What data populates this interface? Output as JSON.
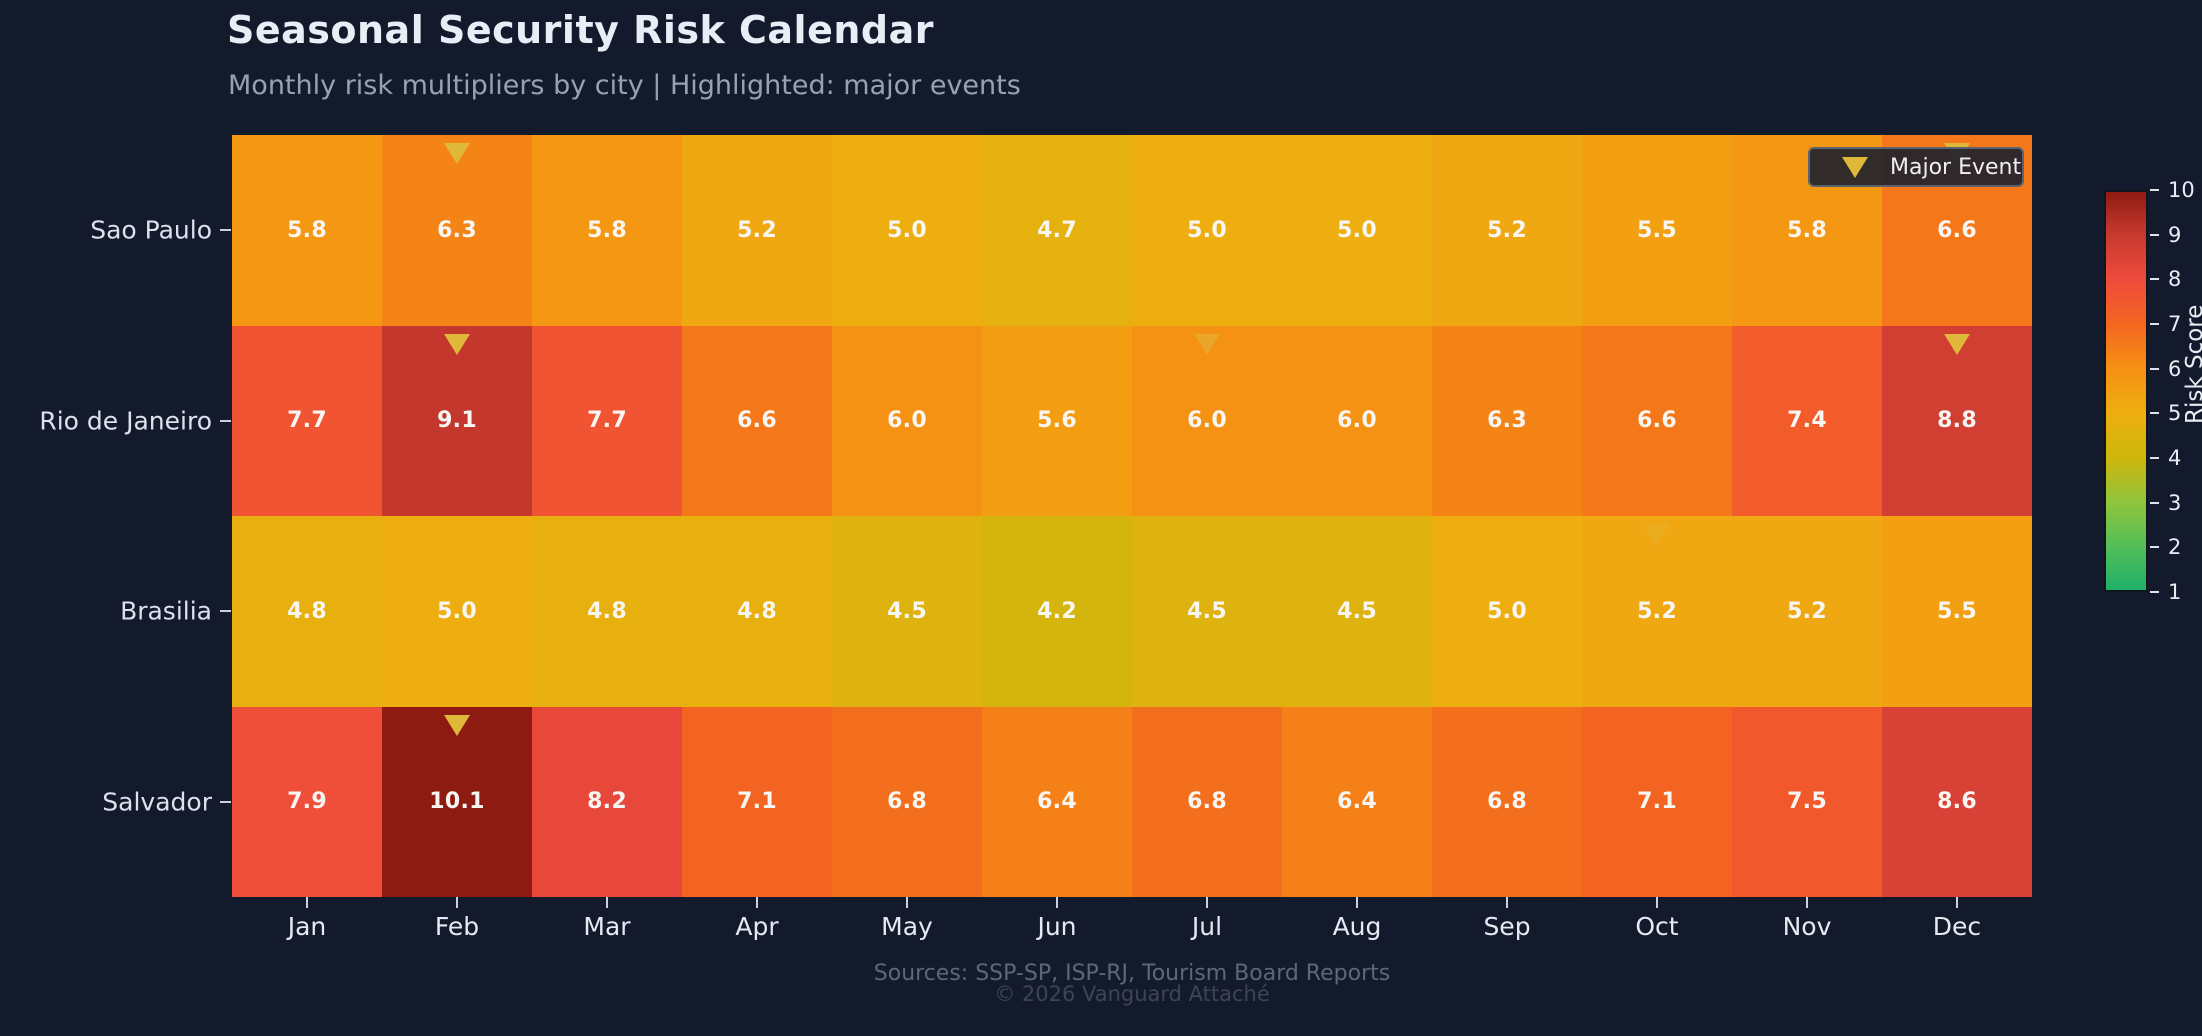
{
  "title": "Seasonal Security Risk Calendar",
  "subtitle": "Monthly risk multipliers by city | Highlighted: major events",
  "legend": {
    "label": "Major Event"
  },
  "colorbar": {
    "label": "Risk Score",
    "min": 1,
    "max": 10,
    "ticks": [
      1,
      2,
      3,
      4,
      5,
      6,
      7,
      8,
      9,
      10
    ]
  },
  "footer": {
    "sources": "Sources: SSP-SP, ISP-RJ, Tourism Board Reports",
    "copyright": "© 2026 Vanguard Attaché"
  },
  "colors": {
    "background": "#131a2b",
    "marker": "#dfb83a",
    "cell_text": "#f8f6f2",
    "colormap_stops": [
      [
        0.0,
        "#1fb068"
      ],
      [
        0.11,
        "#53bf57"
      ],
      [
        0.22,
        "#8fc43c"
      ],
      [
        0.33,
        "#cdb70d"
      ],
      [
        0.445,
        "#eeae10"
      ],
      [
        0.555,
        "#f59113"
      ],
      [
        0.665,
        "#f4671f"
      ],
      [
        0.78,
        "#ee4b3b"
      ],
      [
        0.89,
        "#c93a30"
      ],
      [
        1.0,
        "#8e1b12"
      ]
    ]
  },
  "chart_data": {
    "type": "heatmap",
    "title": "Seasonal Security Risk Calendar",
    "xlabel": "",
    "ylabel": "",
    "value_label": "Risk Score",
    "value_range": [
      1,
      10
    ],
    "x": [
      "Jan",
      "Feb",
      "Mar",
      "Apr",
      "May",
      "Jun",
      "Jul",
      "Aug",
      "Sep",
      "Oct",
      "Nov",
      "Dec"
    ],
    "y": [
      "Sao Paulo",
      "Rio de Janeiro",
      "Brasilia",
      "Salvador"
    ],
    "series": [
      {
        "name": "Sao Paulo",
        "values": [
          5.8,
          6.3,
          5.8,
          5.2,
          5.0,
          4.7,
          5.0,
          5.0,
          5.2,
          5.5,
          5.8,
          6.6
        ]
      },
      {
        "name": "Rio de Janeiro",
        "values": [
          7.7,
          9.1,
          7.7,
          6.6,
          6.0,
          5.6,
          6.0,
          6.0,
          6.3,
          6.6,
          7.4,
          8.8
        ]
      },
      {
        "name": "Brasilia",
        "values": [
          4.8,
          5.0,
          4.8,
          4.8,
          4.5,
          4.2,
          4.5,
          4.5,
          5.0,
          5.2,
          5.2,
          5.5
        ]
      },
      {
        "name": "Salvador",
        "values": [
          7.9,
          10.1,
          8.2,
          7.1,
          6.8,
          6.4,
          6.8,
          6.4,
          6.8,
          7.1,
          7.5,
          8.6
        ]
      }
    ],
    "events": [
      {
        "city": "Sao Paulo",
        "month": "Feb",
        "opacity": 1
      },
      {
        "city": "Sao Paulo",
        "month": "Dec",
        "opacity": 1
      },
      {
        "city": "Rio de Janeiro",
        "month": "Feb",
        "opacity": 1
      },
      {
        "city": "Rio de Janeiro",
        "month": "Jul",
        "opacity": 0.55
      },
      {
        "city": "Rio de Janeiro",
        "month": "Dec",
        "opacity": 1
      },
      {
        "city": "Brasilia",
        "month": "Oct",
        "opacity": 0.35
      },
      {
        "city": "Salvador",
        "month": "Feb",
        "opacity": 1
      }
    ],
    "legend_position": "upper right",
    "grid": false
  }
}
